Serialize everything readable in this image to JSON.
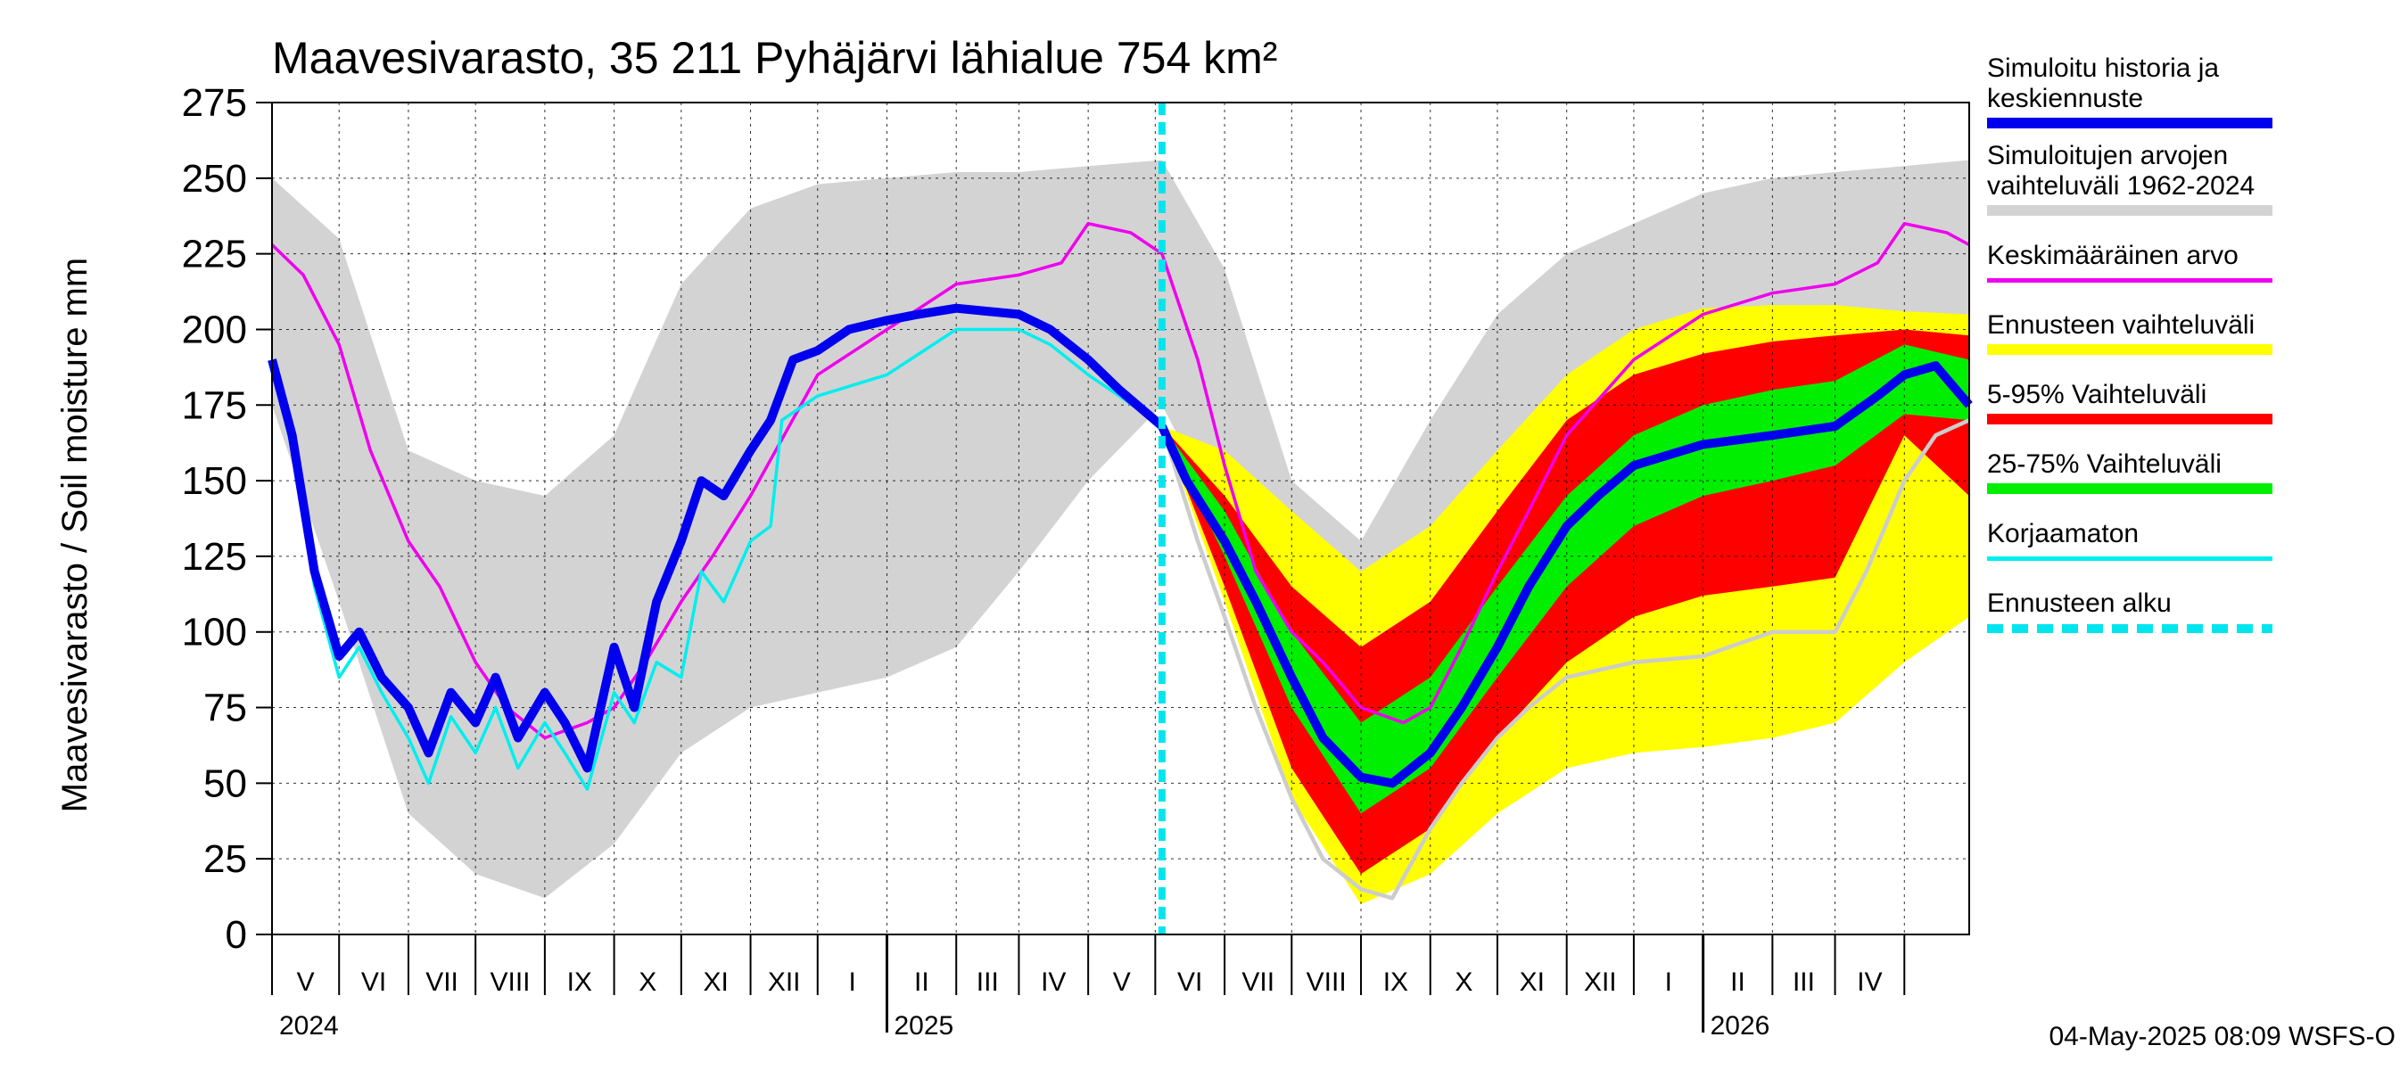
{
  "chart_data": {
    "type": "area",
    "title": "Maavesivarasto, 35 211 Pyhäjärvi lähialue 754 km²",
    "ylabel": "Maavesivarasto / Soil moisture   mm",
    "ylim": [
      0,
      275
    ],
    "yticks": [
      "0",
      "25",
      "50",
      "75",
      "100",
      "125",
      "150",
      "175",
      "200",
      "225",
      "250",
      "275"
    ],
    "x_start": "2024-04-01",
    "x_end": "2026-04-30",
    "forecast_start": "2025-05-04",
    "month_labels": [
      "V",
      "VI",
      "VII",
      "VIII",
      "IX",
      "X",
      "XI",
      "XII",
      "I",
      "II",
      "III",
      "IV",
      "V",
      "VI",
      "VII",
      "VIII",
      "IX",
      "X",
      "XI",
      "XII",
      "I",
      "II",
      "III",
      "IV"
    ],
    "year_labels": [
      "2024",
      "2025",
      "2026"
    ],
    "grid": true,
    "legend_position": "right",
    "legend": [
      {
        "label": "Simuloitu historia ja\nkeskiennuste",
        "color": "#0000ee",
        "style": "thick"
      },
      {
        "label": "Simuloitujen arvojen\nvaihteluväli 1962-2024",
        "color": "#d3d3d3",
        "style": "thick"
      },
      {
        "label": "Keskimääräinen arvo",
        "color": "#ee00ee",
        "style": "thin"
      },
      {
        "label": "Ennusteen vaihteluväli",
        "color": "#ffff00",
        "style": "thick"
      },
      {
        "label": "5-95% Vaihteluväli",
        "color": "#ff0000",
        "style": "thick"
      },
      {
        "label": "25-75% Vaihteluväli",
        "color": "#00ee00",
        "style": "thick"
      },
      {
        "label": "Korjaamaton",
        "color": "#00eeee",
        "style": "thin"
      },
      {
        "label": "Ennusteen alku",
        "color": "#00e5ee",
        "style": "dashed"
      }
    ],
    "hist_range": {
      "x": [
        "2024-04-01",
        "2024-05-01",
        "2024-06-01",
        "2024-07-01",
        "2024-08-01",
        "2024-09-01",
        "2024-10-01",
        "2024-11-01",
        "2024-12-01",
        "2025-01-01",
        "2025-02-01",
        "2025-03-01",
        "2025-04-01",
        "2025-05-04",
        "2025-06-01",
        "2025-07-01",
        "2025-08-01",
        "2025-09-01",
        "2025-10-01",
        "2025-11-01",
        "2025-12-01",
        "2026-01-01",
        "2026-02-01",
        "2026-03-01",
        "2026-04-01",
        "2026-04-30"
      ],
      "low": [
        175,
        110,
        40,
        20,
        12,
        30,
        60,
        75,
        80,
        85,
        95,
        120,
        150,
        175,
        135,
        90,
        110,
        95,
        80,
        75,
        80,
        85,
        95,
        110,
        140,
        155
      ],
      "high": [
        250,
        230,
        160,
        150,
        145,
        165,
        215,
        240,
        248,
        250,
        252,
        252,
        254,
        256,
        220,
        150,
        130,
        170,
        205,
        225,
        235,
        245,
        250,
        252,
        254,
        256
      ]
    },
    "mean": {
      "x": [
        "2024-04-01",
        "2024-04-15",
        "2024-05-01",
        "2024-05-15",
        "2024-06-01",
        "2024-06-15",
        "2024-07-01",
        "2024-07-15",
        "2024-08-01",
        "2024-08-20",
        "2024-09-01",
        "2024-09-15",
        "2024-10-01",
        "2024-10-15",
        "2024-11-01",
        "2024-12-01",
        "2025-01-01",
        "2025-02-01",
        "2025-03-01",
        "2025-03-20",
        "2025-04-01",
        "2025-04-20",
        "2025-05-04",
        "2025-05-20",
        "2025-06-01",
        "2025-06-15",
        "2025-07-01",
        "2025-07-15",
        "2025-08-01",
        "2025-08-20",
        "2025-09-01",
        "2025-09-15",
        "2025-10-01",
        "2025-10-15",
        "2025-11-01",
        "2025-12-01",
        "2026-01-01",
        "2026-02-01",
        "2026-03-01",
        "2026-03-20",
        "2026-04-01",
        "2026-04-20",
        "2026-04-30"
      ],
      "y": [
        228,
        218,
        195,
        160,
        130,
        115,
        90,
        75,
        65,
        70,
        75,
        90,
        110,
        125,
        145,
        185,
        200,
        215,
        218,
        222,
        235,
        232,
        225,
        190,
        155,
        120,
        100,
        90,
        75,
        70,
        75,
        95,
        120,
        140,
        165,
        190,
        205,
        212,
        215,
        222,
        235,
        232,
        228
      ]
    },
    "history": {
      "x": [
        "2024-04-01",
        "2024-04-10",
        "2024-04-20",
        "2024-05-01",
        "2024-05-10",
        "2024-05-20",
        "2024-06-01",
        "2024-06-10",
        "2024-06-20",
        "2024-07-01",
        "2024-07-10",
        "2024-07-20",
        "2024-08-01",
        "2024-08-10",
        "2024-08-20",
        "2024-09-01",
        "2024-09-10",
        "2024-09-20",
        "2024-10-01",
        "2024-10-10",
        "2024-10-20",
        "2024-11-01",
        "2024-11-10",
        "2024-11-20",
        "2024-12-01",
        "2024-12-15",
        "2025-01-01",
        "2025-01-15",
        "2025-02-01",
        "2025-02-15",
        "2025-03-01",
        "2025-03-15",
        "2025-04-01",
        "2025-04-15",
        "2025-05-04"
      ],
      "y": [
        190,
        165,
        120,
        92,
        100,
        85,
        75,
        60,
        80,
        70,
        85,
        65,
        80,
        70,
        55,
        95,
        75,
        110,
        130,
        150,
        145,
        160,
        170,
        190,
        193,
        200,
        203,
        205,
        207,
        206,
        205,
        200,
        190,
        180,
        168
      ]
    },
    "uncorrected": {
      "x": [
        "2024-04-01",
        "2024-04-10",
        "2024-04-20",
        "2024-05-01",
        "2024-05-10",
        "2024-05-20",
        "2024-06-01",
        "2024-06-10",
        "2024-06-20",
        "2024-07-01",
        "2024-07-10",
        "2024-07-20",
        "2024-08-01",
        "2024-08-10",
        "2024-08-20",
        "2024-09-01",
        "2024-09-10",
        "2024-09-20",
        "2024-10-01",
        "2024-10-10",
        "2024-10-20",
        "2024-11-01",
        "2024-11-10",
        "2024-11-15",
        "2024-12-01",
        "2025-01-01",
        "2025-02-01",
        "2025-03-01",
        "2025-03-15",
        "2025-04-01",
        "2025-04-15",
        "2025-05-04"
      ],
      "y": [
        190,
        160,
        115,
        85,
        95,
        80,
        65,
        50,
        72,
        60,
        75,
        55,
        70,
        60,
        48,
        80,
        70,
        90,
        85,
        120,
        110,
        130,
        135,
        170,
        178,
        185,
        200,
        200,
        195,
        185,
        178,
        168
      ]
    },
    "forecast_median": {
      "x": [
        "2025-05-04",
        "2025-05-15",
        "2025-06-01",
        "2025-06-15",
        "2025-07-01",
        "2025-07-15",
        "2025-08-01",
        "2025-08-15",
        "2025-09-01",
        "2025-09-15",
        "2025-10-01",
        "2025-10-15",
        "2025-11-01",
        "2025-11-15",
        "2025-12-01",
        "2026-01-01",
        "2026-02-01",
        "2026-03-01",
        "2026-03-20",
        "2026-04-01",
        "2026-04-15",
        "2026-04-30"
      ],
      "y": [
        168,
        150,
        130,
        110,
        85,
        65,
        52,
        50,
        60,
        75,
        95,
        115,
        135,
        145,
        155,
        162,
        165,
        168,
        178,
        185,
        188,
        175
      ]
    },
    "forecast_uncorrected": {
      "x": [
        "2025-05-04",
        "2025-05-20",
        "2025-06-01",
        "2025-06-15",
        "2025-07-01",
        "2025-07-15",
        "2025-08-01",
        "2025-08-15",
        "2025-09-01",
        "2025-09-15",
        "2025-10-01",
        "2025-10-15",
        "2025-11-01",
        "2025-12-01",
        "2026-01-01",
        "2026-02-01",
        "2026-03-01",
        "2026-03-15",
        "2026-04-01",
        "2026-04-15",
        "2026-04-30"
      ],
      "y": [
        168,
        130,
        105,
        75,
        45,
        25,
        15,
        12,
        35,
        50,
        65,
        75,
        85,
        90,
        92,
        100,
        100,
        120,
        150,
        165,
        170
      ]
    },
    "band_outer": {
      "x": [
        "2025-05-04",
        "2025-06-01",
        "2025-07-01",
        "2025-08-01",
        "2025-09-01",
        "2025-10-01",
        "2025-11-01",
        "2025-12-01",
        "2026-01-01",
        "2026-02-01",
        "2026-03-01",
        "2026-04-01",
        "2026-04-30"
      ],
      "low": [
        168,
        110,
        45,
        10,
        20,
        40,
        55,
        60,
        62,
        65,
        70,
        90,
        105
      ],
      "high": [
        168,
        160,
        140,
        120,
        135,
        160,
        185,
        200,
        207,
        208,
        208,
        206,
        205
      ]
    },
    "band_5_95": {
      "x": [
        "2025-05-04",
        "2025-06-01",
        "2025-07-01",
        "2025-08-01",
        "2025-09-01",
        "2025-10-01",
        "2025-11-01",
        "2025-12-01",
        "2026-01-01",
        "2026-02-01",
        "2026-03-01",
        "2026-04-01",
        "2026-04-30"
      ],
      "low": [
        168,
        115,
        55,
        20,
        35,
        65,
        90,
        105,
        112,
        115,
        118,
        165,
        145
      ],
      "high": [
        168,
        145,
        115,
        95,
        110,
        140,
        170,
        185,
        192,
        196,
        198,
        200,
        198
      ]
    },
    "band_25_75": {
      "x": [
        "2025-05-04",
        "2025-06-01",
        "2025-07-01",
        "2025-08-01",
        "2025-09-01",
        "2025-10-01",
        "2025-11-01",
        "2025-12-01",
        "2026-01-01",
        "2026-02-01",
        "2026-03-01",
        "2026-04-01",
        "2026-04-30"
      ],
      "low": [
        168,
        125,
        75,
        40,
        55,
        85,
        115,
        135,
        145,
        150,
        155,
        172,
        170
      ],
      "high": [
        168,
        140,
        100,
        70,
        85,
        115,
        145,
        165,
        175,
        180,
        183,
        195,
        190
      ]
    }
  },
  "footer_text": "04-May-2025 08:09 WSFS-O"
}
